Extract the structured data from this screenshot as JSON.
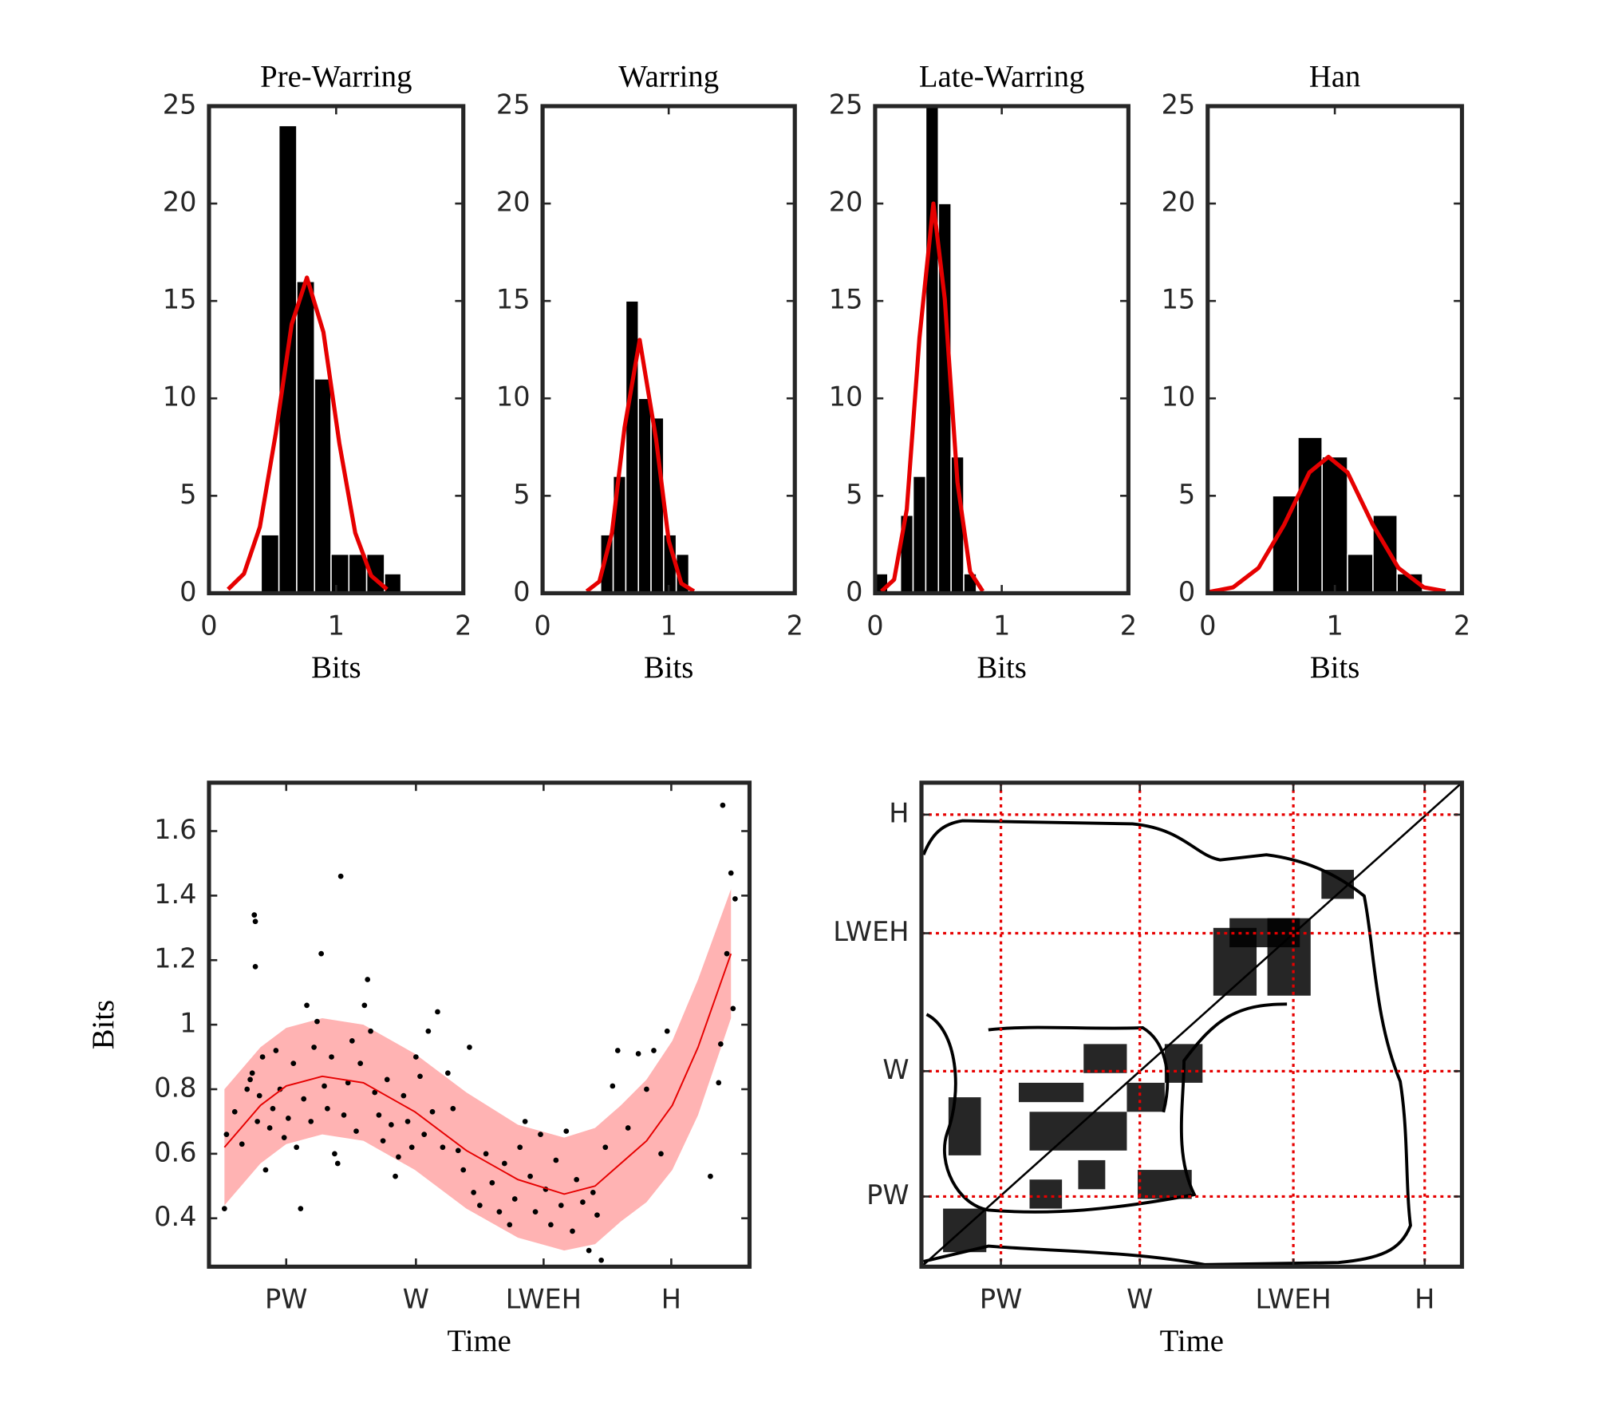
{
  "chart_data": [
    {
      "type": "histogram",
      "title": "Pre-Warring",
      "xlabel": "Bits",
      "bins": [
        0.41,
        0.55,
        0.69,
        0.83,
        0.96,
        1.1,
        1.24,
        1.38,
        1.51
      ],
      "values": [
        3,
        24,
        16,
        11,
        2,
        2,
        2,
        1
      ],
      "color": "#000000",
      "curve": {
        "x": [
          0.15,
          0.275,
          0.4,
          0.525,
          0.65,
          0.77,
          0.9,
          1.025,
          1.15,
          1.275,
          1.4
        ],
        "y": [
          0.2,
          1.0,
          3.4,
          8.2,
          13.8,
          16.2,
          13.4,
          7.7,
          3.1,
          0.9,
          0.2
        ],
        "color": "#e60000"
      },
      "xlim": [
        0,
        2
      ],
      "xticks": [
        0,
        1,
        2
      ],
      "ylim": [
        0,
        25
      ],
      "yticks": [
        0,
        5,
        10,
        15,
        20,
        25
      ]
    },
    {
      "type": "histogram",
      "title": "Warring",
      "xlabel": "Bits",
      "bins": [
        0.46,
        0.56,
        0.66,
        0.76,
        0.86,
        0.96,
        1.06,
        1.16
      ],
      "values": [
        3,
        6,
        15,
        10,
        9,
        3,
        2
      ],
      "color": "#000000",
      "curve": {
        "x": [
          0.35,
          0.45,
          0.55,
          0.65,
          0.77,
          0.9,
          1.0,
          1.1,
          1.2
        ],
        "y": [
          0.1,
          0.6,
          3.1,
          8.5,
          13,
          7.9,
          2.7,
          0.5,
          0.1
        ],
        "color": "#e60000"
      },
      "xlim": [
        0,
        2
      ],
      "xticks": [
        0,
        1,
        2
      ],
      "ylim": [
        0,
        25
      ],
      "yticks": [
        0,
        5,
        10,
        15,
        20,
        25
      ]
    },
    {
      "type": "histogram",
      "title": "Late-Warring",
      "xlabel": "Bits",
      "bins": [
        0,
        0.1,
        0.2,
        0.3,
        0.4,
        0.5,
        0.6,
        0.7,
        0.8
      ],
      "values": [
        1,
        0,
        4,
        6,
        25,
        20,
        7,
        1
      ],
      "color": "#000000",
      "curve": {
        "x": [
          0.05,
          0.15,
          0.25,
          0.35,
          0.46,
          0.55,
          0.65,
          0.75,
          0.85
        ],
        "y": [
          0.1,
          0.7,
          4.3,
          13.1,
          20,
          15.1,
          5.7,
          1.1,
          0.1
        ],
        "color": "#e60000"
      },
      "xlim": [
        0,
        2
      ],
      "xticks": [
        0,
        1,
        2
      ],
      "ylim": [
        0,
        25
      ],
      "yticks": [
        0,
        5,
        10,
        15,
        20,
        25
      ]
    },
    {
      "type": "histogram",
      "title": "Han",
      "xlabel": "Bits",
      "bins": [
        0.51,
        0.71,
        0.9,
        1.1,
        1.3,
        1.49,
        1.69
      ],
      "values": [
        5,
        8,
        7,
        2,
        4,
        1
      ],
      "color": "#000000",
      "curve": {
        "x": [
          0,
          0.2,
          0.4,
          0.6,
          0.8,
          0.95,
          1.1,
          1.3,
          1.5,
          1.7,
          1.87
        ],
        "y": [
          0.05,
          0.3,
          1.3,
          3.5,
          6.2,
          7,
          6.2,
          3.5,
          1.3,
          0.3,
          0.1
        ],
        "color": "#e60000"
      },
      "xlim": [
        0,
        2
      ],
      "xticks": [
        0,
        1,
        2
      ],
      "ylim": [
        0,
        25
      ],
      "yticks": [
        0,
        5,
        10,
        15,
        20,
        25
      ]
    },
    {
      "type": "scatter",
      "xlabel": "Time",
      "ylabel": "Bits",
      "color": "#000000",
      "x": [
        15,
        17,
        25,
        32,
        37,
        40,
        42,
        44,
        45,
        45,
        47,
        49,
        52,
        55,
        59,
        62,
        65,
        69,
        73,
        77,
        82,
        85,
        89,
        92,
        95,
        99,
        102,
        105,
        109,
        112,
        115,
        119,
        122,
        125,
        128,
        131,
        135,
        139,
        143,
        147,
        151,
        154,
        157,
        161,
        165,
        169,
        173,
        177,
        181,
        184,
        189,
        193,
        197,
        201,
        205,
        209,
        213,
        217,
        222,
        227,
        232,
        237,
        242,
        247,
        253,
        257,
        263,
        269,
        275,
        282,
        287,
        292,
        297,
        302,
        307,
        312,
        317,
        322,
        327,
        332,
        337,
        342,
        347,
        353,
        357,
        363,
        369,
        373,
        377,
        381,
        385,
        392,
        397,
        407,
        417,
        425,
        432,
        439,
        445,
        487,
        495,
        497,
        499,
        503,
        507,
        509,
        511
      ],
      "values": [
        0.43,
        0.66,
        0.73,
        0.63,
        0.8,
        0.83,
        0.85,
        1.34,
        1.32,
        1.18,
        0.7,
        0.78,
        0.9,
        0.55,
        0.68,
        0.74,
        0.92,
        0.8,
        0.65,
        0.71,
        0.88,
        0.62,
        0.43,
        0.77,
        1.06,
        0.7,
        0.93,
        1.01,
        1.22,
        0.81,
        0.74,
        0.9,
        0.6,
        0.57,
        1.46,
        0.72,
        0.82,
        0.95,
        0.67,
        0.88,
        1.06,
        1.14,
        0.98,
        0.79,
        0.72,
        0.64,
        0.83,
        0.69,
        0.53,
        0.59,
        0.78,
        0.7,
        0.62,
        0.9,
        0.84,
        0.66,
        0.98,
        0.73,
        1.04,
        0.62,
        0.85,
        0.74,
        0.61,
        0.55,
        0.93,
        0.48,
        0.44,
        0.6,
        0.51,
        0.42,
        0.57,
        0.38,
        0.46,
        0.62,
        0.7,
        0.53,
        0.42,
        0.66,
        0.49,
        0.38,
        0.58,
        0.44,
        0.67,
        0.36,
        0.52,
        0.45,
        0.3,
        0.48,
        0.41,
        0.27,
        0.62,
        0.81,
        0.92,
        0.68,
        0.91,
        0.8,
        0.92,
        0.6,
        0.98,
        0.53,
        0.82,
        0.94,
        1.68,
        1.22,
        1.47,
        1.05,
        1.39
      ],
      "fit": {
        "x": [
          15,
          50,
          75,
          110,
          150,
          200,
          250,
          300,
          345,
          375,
          400,
          425,
          450,
          475,
          507
        ],
        "values": [
          0.62,
          0.75,
          0.81,
          0.84,
          0.82,
          0.73,
          0.61,
          0.52,
          0.475,
          0.5,
          0.57,
          0.64,
          0.75,
          0.93,
          1.22
        ],
        "lower": [
          0.44,
          0.57,
          0.63,
          0.66,
          0.64,
          0.55,
          0.43,
          0.34,
          0.3,
          0.32,
          0.39,
          0.45,
          0.55,
          0.72,
          1.02
        ],
        "upper": [
          0.8,
          0.93,
          0.99,
          1.02,
          1.0,
          0.91,
          0.79,
          0.69,
          0.65,
          0.68,
          0.75,
          0.83,
          0.95,
          1.14,
          1.42
        ],
        "color": "#e60000",
        "band_color": "#ffb3b3"
      },
      "xlim": [
        0,
        525
      ],
      "xticks": [
        {
          "value": 75,
          "label": "PW"
        },
        {
          "value": 201,
          "label": "W"
        },
        {
          "value": 325,
          "label": "LWEH"
        },
        {
          "value": 449,
          "label": "H"
        }
      ],
      "ylim": [
        0.25,
        1.75
      ],
      "yticks": [
        0.4,
        0.6,
        0.8,
        1,
        1.2,
        1.4,
        1.6
      ]
    },
    {
      "type": "recurrence",
      "xlabel": "Time",
      "color": "#000000",
      "grid": true,
      "grid_color": "#e60000",
      "diagonal": true,
      "blocks": [
        [
          4,
          12,
          3,
          12
        ],
        [
          5,
          11,
          23,
          35
        ],
        [
          20,
          38,
          24,
          32
        ],
        [
          18,
          30,
          34,
          38
        ],
        [
          29,
          34,
          16,
          22
        ],
        [
          38,
          45,
          32,
          38
        ],
        [
          40,
          50,
          14,
          20
        ],
        [
          30,
          38,
          40,
          46
        ],
        [
          45,
          52,
          38,
          46
        ],
        [
          20,
          26,
          12,
          18
        ],
        [
          54,
          62,
          56,
          70
        ],
        [
          64,
          72,
          56,
          72
        ],
        [
          57,
          70,
          66,
          72
        ],
        [
          74,
          80,
          76,
          82
        ]
      ],
      "xlim": [
        0,
        100
      ],
      "xticks": [
        {
          "value": 14.7,
          "label": "PW"
        },
        {
          "value": 40.4,
          "label": "W"
        },
        {
          "value": 68.8,
          "label": "LWEH"
        },
        {
          "value": 93.1,
          "label": "H"
        }
      ],
      "ylim": [
        0,
        100
      ],
      "yticks": [
        {
          "value": 14.5,
          "label": "PW"
        },
        {
          "value": 40.4,
          "label": "W"
        },
        {
          "value": 68.9,
          "label": "LWEH"
        },
        {
          "value": 93.4,
          "label": "H"
        }
      ]
    }
  ]
}
